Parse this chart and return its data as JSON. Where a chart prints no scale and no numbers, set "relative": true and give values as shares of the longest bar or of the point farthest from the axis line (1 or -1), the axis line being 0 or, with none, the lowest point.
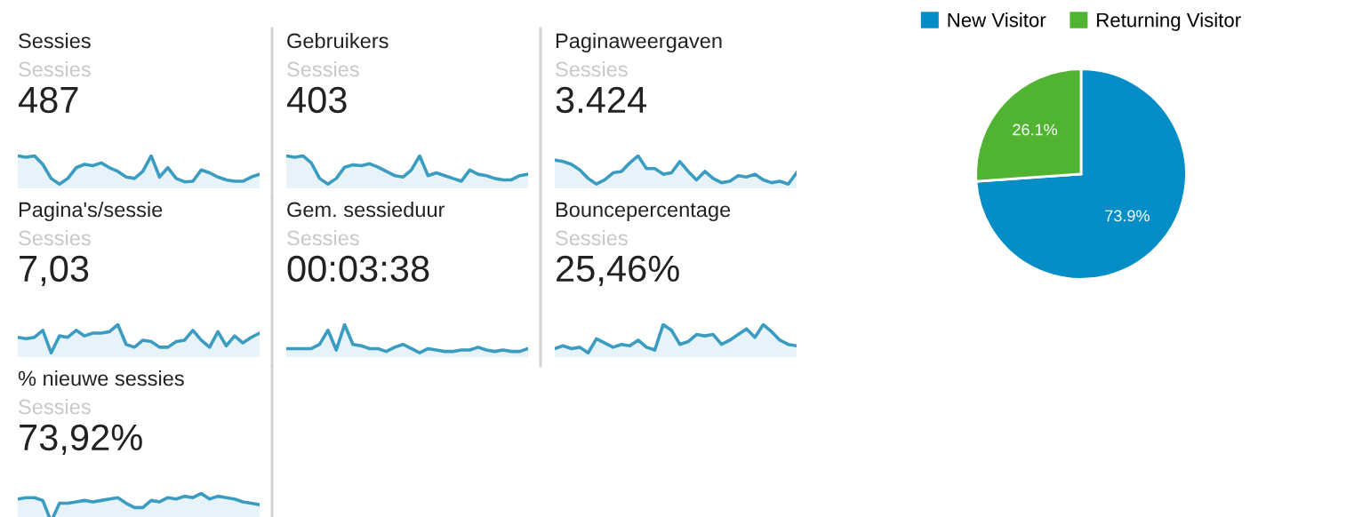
{
  "chart_data": [
    {
      "type": "area",
      "title": "Sessies",
      "subtitle": "Sessies",
      "annotations": [
        "487"
      ],
      "relative": true,
      "categories": [
        null,
        null,
        null,
        null,
        null,
        null,
        null,
        null,
        null,
        null,
        null,
        null,
        null,
        null,
        null,
        null,
        null,
        null,
        null,
        null,
        null,
        null,
        null,
        null,
        null,
        null,
        null,
        null,
        null,
        null
      ],
      "series": [
        {
          "color": "#3b9cc2",
          "values": [
            1,
            0.95,
            1,
            0.7,
            0.2,
            0,
            0.2,
            0.58,
            0.7,
            0.65,
            0.75,
            0.58,
            0.45,
            0.25,
            0.2,
            0.45,
            1,
            0.25,
            0.58,
            0.2,
            0.08,
            0.1,
            0.5,
            0.4,
            0.25,
            0.15,
            0.1,
            0.1,
            0.25,
            0.35
          ]
        }
      ]
    },
    {
      "type": "area",
      "title": "Gebruikers",
      "subtitle": "Sessies",
      "annotations": [
        "403"
      ],
      "relative": true,
      "categories": [
        null,
        null,
        null,
        null,
        null,
        null,
        null,
        null,
        null,
        null,
        null,
        null,
        null,
        null,
        null,
        null,
        null,
        null,
        null,
        null,
        null,
        null,
        null,
        null,
        null,
        null,
        null,
        null,
        null,
        null
      ],
      "series": [
        {
          "color": "#3b9cc2",
          "values": [
            1,
            0.95,
            1,
            0.75,
            0.2,
            0,
            0.2,
            0.6,
            0.68,
            0.65,
            0.72,
            0.6,
            0.45,
            0.3,
            0.25,
            0.5,
            1,
            0.3,
            0.4,
            0.3,
            0.2,
            0.1,
            0.5,
            0.35,
            0.3,
            0.2,
            0.15,
            0.15,
            0.3,
            0.35
          ]
        }
      ]
    },
    {
      "type": "area",
      "title": "Paginaweergaven",
      "subtitle": "Sessies",
      "annotations": [
        "3.424"
      ],
      "relative": true,
      "categories": [
        null,
        null,
        null,
        null,
        null,
        null,
        null,
        null,
        null,
        null,
        null,
        null,
        null,
        null,
        null,
        null,
        null,
        null,
        null,
        null,
        null,
        null,
        null,
        null,
        null,
        null,
        null,
        null,
        null,
        null
      ],
      "series": [
        {
          "color": "#3b9cc2",
          "values": [
            0.85,
            0.8,
            0.7,
            0.5,
            0.2,
            0,
            0.15,
            0.4,
            0.45,
            0.75,
            1,
            0.55,
            0.55,
            0.35,
            0.4,
            0.8,
            0.45,
            0.15,
            0.45,
            0.2,
            0.05,
            0.1,
            0.3,
            0.25,
            0.35,
            0.15,
            0.05,
            0.1,
            0,
            0.4
          ]
        }
      ]
    },
    {
      "type": "area",
      "title": "Pagina's/sessie",
      "subtitle": "Sessies",
      "annotations": [
        "7,03"
      ],
      "relative": true,
      "categories": [
        null,
        null,
        null,
        null,
        null,
        null,
        null,
        null,
        null,
        null,
        null,
        null,
        null,
        null,
        null,
        null,
        null,
        null,
        null,
        null,
        null,
        null,
        null,
        null,
        null,
        null,
        null,
        null,
        null,
        null
      ],
      "series": [
        {
          "color": "#3b9cc2",
          "values": [
            0.55,
            0.5,
            0.55,
            0.8,
            0,
            0.6,
            0.55,
            0.8,
            0.6,
            0.7,
            0.7,
            0.75,
            1,
            0.3,
            0.2,
            0.45,
            0.4,
            0.2,
            0.2,
            0.4,
            0.45,
            0.8,
            0.45,
            0.2,
            0.75,
            0.25,
            0.6,
            0.35,
            0.55,
            0.7
          ]
        }
      ]
    },
    {
      "type": "area",
      "title": "Gem. sessieduur",
      "subtitle": "Sessies",
      "annotations": [
        "00:03:38"
      ],
      "relative": true,
      "categories": [
        null,
        null,
        null,
        null,
        null,
        null,
        null,
        null,
        null,
        null,
        null,
        null,
        null,
        null,
        null,
        null,
        null,
        null,
        null,
        null,
        null,
        null,
        null,
        null,
        null,
        null,
        null,
        null,
        null,
        null
      ],
      "series": [
        {
          "color": "#3b9cc2",
          "values": [
            0.15,
            0.15,
            0.15,
            0.15,
            0.3,
            0.8,
            0.1,
            1,
            0.3,
            0.25,
            0.15,
            0.15,
            0.05,
            0.2,
            0.3,
            0.15,
            0,
            0.15,
            0.1,
            0.05,
            0.05,
            0.1,
            0.1,
            0.2,
            0.1,
            0.05,
            0.1,
            0.05,
            0.05,
            0.15
          ]
        }
      ]
    },
    {
      "type": "area",
      "title": "Bouncepercentage",
      "subtitle": "Sessies",
      "annotations": [
        "25,46%"
      ],
      "relative": true,
      "categories": [
        null,
        null,
        null,
        null,
        null,
        null,
        null,
        null,
        null,
        null,
        null,
        null,
        null,
        null,
        null,
        null,
        null,
        null,
        null,
        null,
        null,
        null,
        null,
        null,
        null,
        null,
        null,
        null,
        null,
        null
      ],
      "series": [
        {
          "color": "#3b9cc2",
          "values": [
            0.15,
            0.25,
            0.15,
            0.2,
            0,
            0.5,
            0.35,
            0.2,
            0.3,
            0.25,
            0.45,
            0.2,
            0.1,
            1,
            0.8,
            0.3,
            0.4,
            0.65,
            0.6,
            0.65,
            0.3,
            0.45,
            0.65,
            0.85,
            0.55,
            1,
            0.75,
            0.45,
            0.3,
            0.25
          ]
        }
      ]
    },
    {
      "type": "area",
      "title": "% nieuwe sessies",
      "subtitle": "Sessies",
      "annotations": [
        "73,92%"
      ],
      "relative": true,
      "categories": [
        null,
        null,
        null,
        null,
        null,
        null,
        null,
        null,
        null,
        null,
        null,
        null,
        null,
        null,
        null,
        null,
        null,
        null,
        null,
        null,
        null,
        null,
        null,
        null,
        null,
        null,
        null,
        null,
        null,
        null
      ],
      "series": [
        {
          "color": "#3b9cc2",
          "values": [
            0.8,
            0.85,
            0.85,
            0.75,
            0,
            0.65,
            0.65,
            0.7,
            0.75,
            0.7,
            0.75,
            0.8,
            0.85,
            0.65,
            0.5,
            0.5,
            0.75,
            0.7,
            0.85,
            0.8,
            0.9,
            0.85,
            1,
            0.8,
            0.9,
            0.85,
            0.8,
            0.7,
            0.65,
            0.6
          ]
        }
      ]
    },
    {
      "type": "pie",
      "categories": [
        "New Visitor",
        "Returning Visitor"
      ],
      "values": [
        73.9,
        26.1
      ],
      "colors": [
        "#058dc7",
        "#50b432"
      ],
      "value_labels": [
        "73.9%",
        "26.1%"
      ],
      "legend": "top"
    }
  ]
}
